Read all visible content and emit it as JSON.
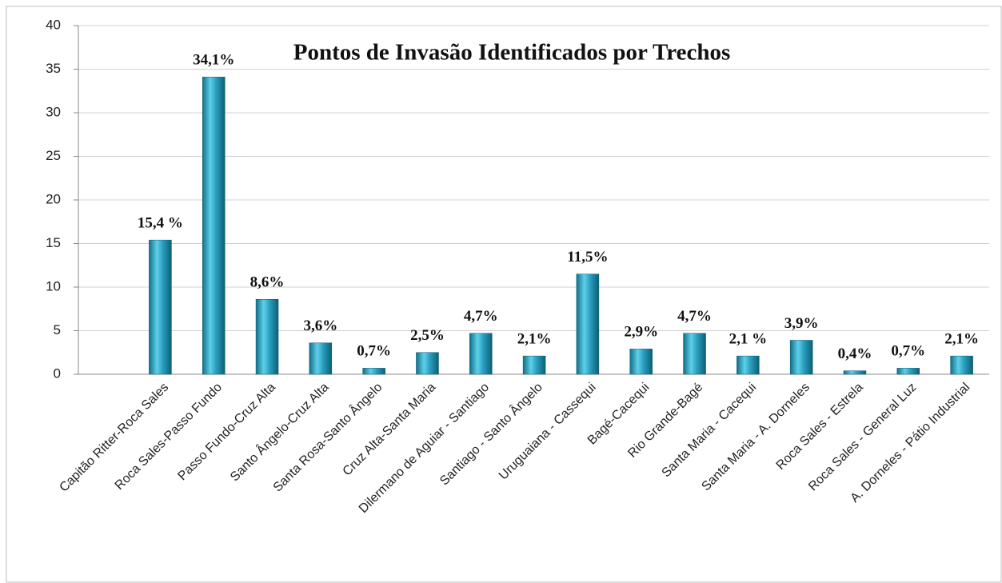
{
  "chart_data": {
    "type": "bar",
    "title": "Pontos de Invasão Identificados por Trechos",
    "categories": [
      "Capitão Ritter-Roca Sales",
      "Roca Sales-Passo Fundo",
      "Passo Fundo-Cruz Alta",
      "Santo Ângelo-Cruz Alta",
      "Santa Rosa-Santo Ângelo",
      "Cruz Alta-Santa Maria",
      "Dilermano de Aguiar - Santiago",
      "Santiago - Santo Ângelo",
      "Uruguaiana - Cassequi",
      "Bagé-Cacequi",
      "Rio Grande-Bagé",
      "Santa Maria - Cacequi",
      "Santa Maria - A. Dorneles",
      "Roca Sales - Estrela",
      "Roca Sales - General Luz",
      "A. Dorneles  - Pátio Industrial"
    ],
    "values": [
      15.4,
      34.1,
      8.6,
      3.6,
      0.7,
      2.5,
      4.7,
      2.1,
      11.5,
      2.9,
      4.7,
      2.1,
      3.9,
      0.4,
      0.7,
      2.1
    ],
    "value_labels": [
      "15,4 %",
      "34,1%",
      "8,6%",
      "3,6%",
      "0,7%",
      "2,5%",
      "4,7%",
      "2,1%",
      "11,5%",
      "2,9%",
      "4,7%",
      "2,1 %",
      "3,9%",
      "0,4%",
      "0,7%",
      "2,1%"
    ],
    "color": "#2aa0c0",
    "ylim": [
      0,
      40
    ],
    "yticks": [
      0,
      5,
      10,
      15,
      20,
      25,
      30,
      35,
      40
    ],
    "grid": true
  }
}
